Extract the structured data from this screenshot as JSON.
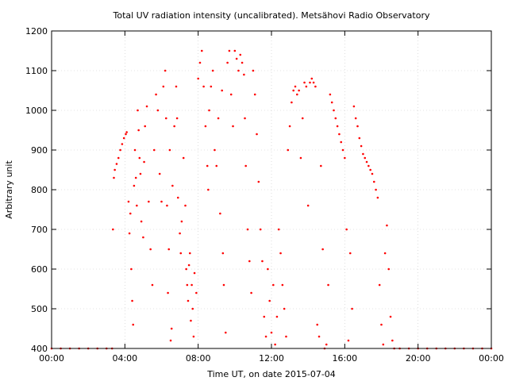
{
  "chart_data": {
    "type": "scatter",
    "title": "Total UV radiation intensity (uncalibrated). Metsähovi Radio Observatory",
    "xlabel": "Time UT, on date 2015-07-04",
    "ylabel": "Arbitrary unit",
    "xlim": [
      0,
      24
    ],
    "ylim": [
      400,
      1200
    ],
    "xticks": [
      {
        "value": 0,
        "label": "00:00"
      },
      {
        "value": 4,
        "label": "04:00"
      },
      {
        "value": 8,
        "label": "08:00"
      },
      {
        "value": 12,
        "label": "12:00"
      },
      {
        "value": 16,
        "label": "16:00"
      },
      {
        "value": 20,
        "label": "20:00"
      },
      {
        "value": 24,
        "label": "00:00"
      }
    ],
    "yticks": [
      {
        "value": 400,
        "label": "400"
      },
      {
        "value": 500,
        "label": "500"
      },
      {
        "value": 600,
        "label": "600"
      },
      {
        "value": 700,
        "label": "700"
      },
      {
        "value": 800,
        "label": "800"
      },
      {
        "value": 900,
        "label": "900"
      },
      {
        "value": 1000,
        "label": "1000"
      },
      {
        "value": 1100,
        "label": "1100"
      },
      {
        "value": 1200,
        "label": "1200"
      }
    ],
    "grid": true,
    "series": [
      {
        "color": "#ff0000",
        "marker": "point",
        "points": [
          [
            0.0,
            400
          ],
          [
            0.5,
            400
          ],
          [
            1.0,
            400
          ],
          [
            1.5,
            400
          ],
          [
            2.0,
            400
          ],
          [
            2.5,
            400
          ],
          [
            3.0,
            400
          ],
          [
            3.3,
            400
          ],
          [
            3.35,
            700
          ],
          [
            3.4,
            830
          ],
          [
            3.45,
            850
          ],
          [
            3.55,
            865
          ],
          [
            3.65,
            880
          ],
          [
            3.75,
            900
          ],
          [
            3.85,
            915
          ],
          [
            3.95,
            930
          ],
          [
            4.05,
            940
          ],
          [
            4.1,
            945
          ],
          [
            4.2,
            770
          ],
          [
            4.25,
            690
          ],
          [
            4.3,
            740
          ],
          [
            4.35,
            600
          ],
          [
            4.4,
            520
          ],
          [
            4.45,
            460
          ],
          [
            4.5,
            810
          ],
          [
            4.55,
            900
          ],
          [
            4.6,
            830
          ],
          [
            4.65,
            760
          ],
          [
            4.7,
            1000
          ],
          [
            4.75,
            950
          ],
          [
            4.8,
            880
          ],
          [
            4.85,
            840
          ],
          [
            4.9,
            720
          ],
          [
            5.0,
            680
          ],
          [
            5.05,
            870
          ],
          [
            5.1,
            960
          ],
          [
            5.2,
            1010
          ],
          [
            5.3,
            770
          ],
          [
            5.4,
            650
          ],
          [
            5.5,
            560
          ],
          [
            5.6,
            900
          ],
          [
            5.7,
            1040
          ],
          [
            5.8,
            1000
          ],
          [
            5.9,
            840
          ],
          [
            6.0,
            770
          ],
          [
            6.1,
            1060
          ],
          [
            6.2,
            1100
          ],
          [
            6.25,
            980
          ],
          [
            6.3,
            760
          ],
          [
            6.35,
            540
          ],
          [
            6.4,
            650
          ],
          [
            6.45,
            900
          ],
          [
            6.5,
            420
          ],
          [
            6.55,
            450
          ],
          [
            6.6,
            810
          ],
          [
            6.7,
            960
          ],
          [
            6.8,
            1060
          ],
          [
            6.85,
            980
          ],
          [
            6.9,
            780
          ],
          [
            7.0,
            690
          ],
          [
            7.05,
            640
          ],
          [
            7.1,
            720
          ],
          [
            7.2,
            880
          ],
          [
            7.3,
            760
          ],
          [
            7.35,
            600
          ],
          [
            7.4,
            560
          ],
          [
            7.45,
            520
          ],
          [
            7.5,
            610
          ],
          [
            7.55,
            640
          ],
          [
            7.6,
            470
          ],
          [
            7.65,
            560
          ],
          [
            7.7,
            500
          ],
          [
            7.75,
            430
          ],
          [
            7.8,
            590
          ],
          [
            7.9,
            540
          ],
          [
            8.0,
            1080
          ],
          [
            8.1,
            1120
          ],
          [
            8.2,
            1150
          ],
          [
            8.3,
            1060
          ],
          [
            8.4,
            960
          ],
          [
            8.5,
            860
          ],
          [
            8.55,
            800
          ],
          [
            8.6,
            1000
          ],
          [
            8.7,
            1060
          ],
          [
            8.8,
            1100
          ],
          [
            8.9,
            900
          ],
          [
            9.0,
            860
          ],
          [
            9.1,
            980
          ],
          [
            9.2,
            740
          ],
          [
            9.3,
            1050
          ],
          [
            9.35,
            640
          ],
          [
            9.4,
            560
          ],
          [
            9.5,
            440
          ],
          [
            9.6,
            1120
          ],
          [
            9.7,
            1150
          ],
          [
            9.8,
            1040
          ],
          [
            9.9,
            960
          ],
          [
            10.0,
            1150
          ],
          [
            10.1,
            1130
          ],
          [
            10.2,
            1100
          ],
          [
            10.3,
            1140
          ],
          [
            10.4,
            1120
          ],
          [
            10.5,
            1090
          ],
          [
            10.55,
            980
          ],
          [
            10.6,
            860
          ],
          [
            10.7,
            700
          ],
          [
            10.8,
            620
          ],
          [
            10.9,
            540
          ],
          [
            11.0,
            1100
          ],
          [
            11.1,
            1040
          ],
          [
            11.2,
            940
          ],
          [
            11.3,
            820
          ],
          [
            11.4,
            700
          ],
          [
            11.5,
            620
          ],
          [
            11.6,
            480
          ],
          [
            11.7,
            430
          ],
          [
            11.8,
            600
          ],
          [
            11.9,
            520
          ],
          [
            12.0,
            440
          ],
          [
            12.1,
            560
          ],
          [
            12.2,
            410
          ],
          [
            12.3,
            480
          ],
          [
            12.4,
            700
          ],
          [
            12.5,
            640
          ],
          [
            12.6,
            560
          ],
          [
            12.7,
            500
          ],
          [
            12.8,
            430
          ],
          [
            12.9,
            900
          ],
          [
            13.0,
            960
          ],
          [
            13.1,
            1020
          ],
          [
            13.2,
            1050
          ],
          [
            13.3,
            1060
          ],
          [
            13.4,
            1040
          ],
          [
            13.5,
            1050
          ],
          [
            13.6,
            880
          ],
          [
            13.7,
            980
          ],
          [
            13.8,
            1070
          ],
          [
            13.9,
            1060
          ],
          [
            14.0,
            760
          ],
          [
            14.1,
            1070
          ],
          [
            14.2,
            1080
          ],
          [
            14.3,
            1070
          ],
          [
            14.4,
            1060
          ],
          [
            14.5,
            460
          ],
          [
            14.6,
            430
          ],
          [
            14.7,
            860
          ],
          [
            14.8,
            650
          ],
          [
            14.9,
            400
          ],
          [
            15.0,
            410
          ],
          [
            15.1,
            560
          ],
          [
            15.2,
            1040
          ],
          [
            15.3,
            1020
          ],
          [
            15.4,
            1000
          ],
          [
            15.5,
            980
          ],
          [
            15.6,
            960
          ],
          [
            15.7,
            940
          ],
          [
            15.8,
            920
          ],
          [
            15.9,
            900
          ],
          [
            16.0,
            880
          ],
          [
            16.1,
            700
          ],
          [
            16.2,
            420
          ],
          [
            16.3,
            640
          ],
          [
            16.4,
            500
          ],
          [
            16.5,
            1010
          ],
          [
            16.6,
            980
          ],
          [
            16.7,
            960
          ],
          [
            16.8,
            930
          ],
          [
            16.9,
            910
          ],
          [
            17.0,
            890
          ],
          [
            17.1,
            880
          ],
          [
            17.2,
            870
          ],
          [
            17.3,
            860
          ],
          [
            17.4,
            850
          ],
          [
            17.5,
            840
          ],
          [
            17.6,
            820
          ],
          [
            17.7,
            800
          ],
          [
            17.8,
            780
          ],
          [
            17.9,
            560
          ],
          [
            18.0,
            460
          ],
          [
            18.1,
            410
          ],
          [
            18.2,
            640
          ],
          [
            18.3,
            710
          ],
          [
            18.4,
            600
          ],
          [
            18.5,
            480
          ],
          [
            18.6,
            420
          ],
          [
            18.7,
            400
          ],
          [
            19.0,
            400
          ],
          [
            19.5,
            400
          ],
          [
            20.0,
            400
          ],
          [
            20.5,
            400
          ],
          [
            21.0,
            400
          ],
          [
            21.5,
            400
          ],
          [
            22.0,
            400
          ],
          [
            22.5,
            400
          ],
          [
            23.0,
            400
          ],
          [
            23.5,
            400
          ],
          [
            24.0,
            400
          ]
        ]
      }
    ]
  }
}
